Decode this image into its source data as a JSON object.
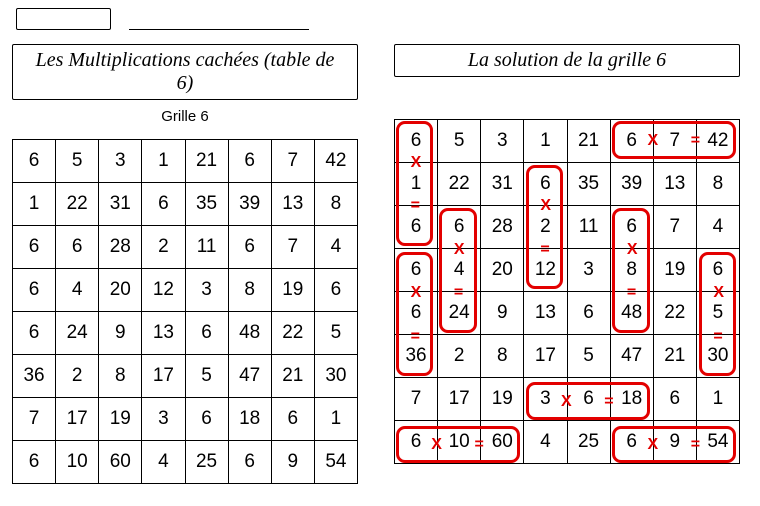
{
  "left": {
    "title": "Les Multiplications cachées (table de 6)",
    "subtitle": "Grille 6"
  },
  "right": {
    "title": "La solution de la grille 6"
  },
  "grid": {
    "rows": [
      [
        6,
        5,
        3,
        1,
        21,
        6,
        7,
        42
      ],
      [
        1,
        22,
        31,
        6,
        35,
        39,
        13,
        8
      ],
      [
        6,
        6,
        28,
        2,
        11,
        6,
        7,
        4
      ],
      [
        6,
        4,
        20,
        12,
        3,
        8,
        19,
        6
      ],
      [
        6,
        24,
        9,
        13,
        6,
        48,
        22,
        5
      ],
      [
        36,
        2,
        8,
        17,
        5,
        47,
        21,
        30
      ],
      [
        7,
        17,
        19,
        3,
        6,
        18,
        6,
        1
      ],
      [
        6,
        10,
        60,
        4,
        25,
        6,
        9,
        54
      ]
    ]
  },
  "cell_w": 43.25,
  "cell_h": 43.5,
  "solutions": [
    {
      "r": 0,
      "c": 0,
      "len": 3,
      "dir": "v"
    },
    {
      "r": 0,
      "c": 5,
      "len": 3,
      "dir": "h"
    },
    {
      "r": 1,
      "c": 3,
      "len": 3,
      "dir": "v"
    },
    {
      "r": 2,
      "c": 1,
      "len": 3,
      "dir": "v"
    },
    {
      "r": 2,
      "c": 5,
      "len": 3,
      "dir": "v"
    },
    {
      "r": 3,
      "c": 0,
      "len": 3,
      "dir": "v"
    },
    {
      "r": 3,
      "c": 7,
      "len": 3,
      "dir": "v"
    },
    {
      "r": 6,
      "c": 3,
      "len": 3,
      "dir": "h"
    },
    {
      "r": 7,
      "c": 0,
      "len": 3,
      "dir": "h"
    },
    {
      "r": 7,
      "c": 5,
      "len": 3,
      "dir": "h"
    }
  ],
  "colors": {
    "accent": "#e30000",
    "border": "#000000",
    "bg": "#ffffff"
  }
}
